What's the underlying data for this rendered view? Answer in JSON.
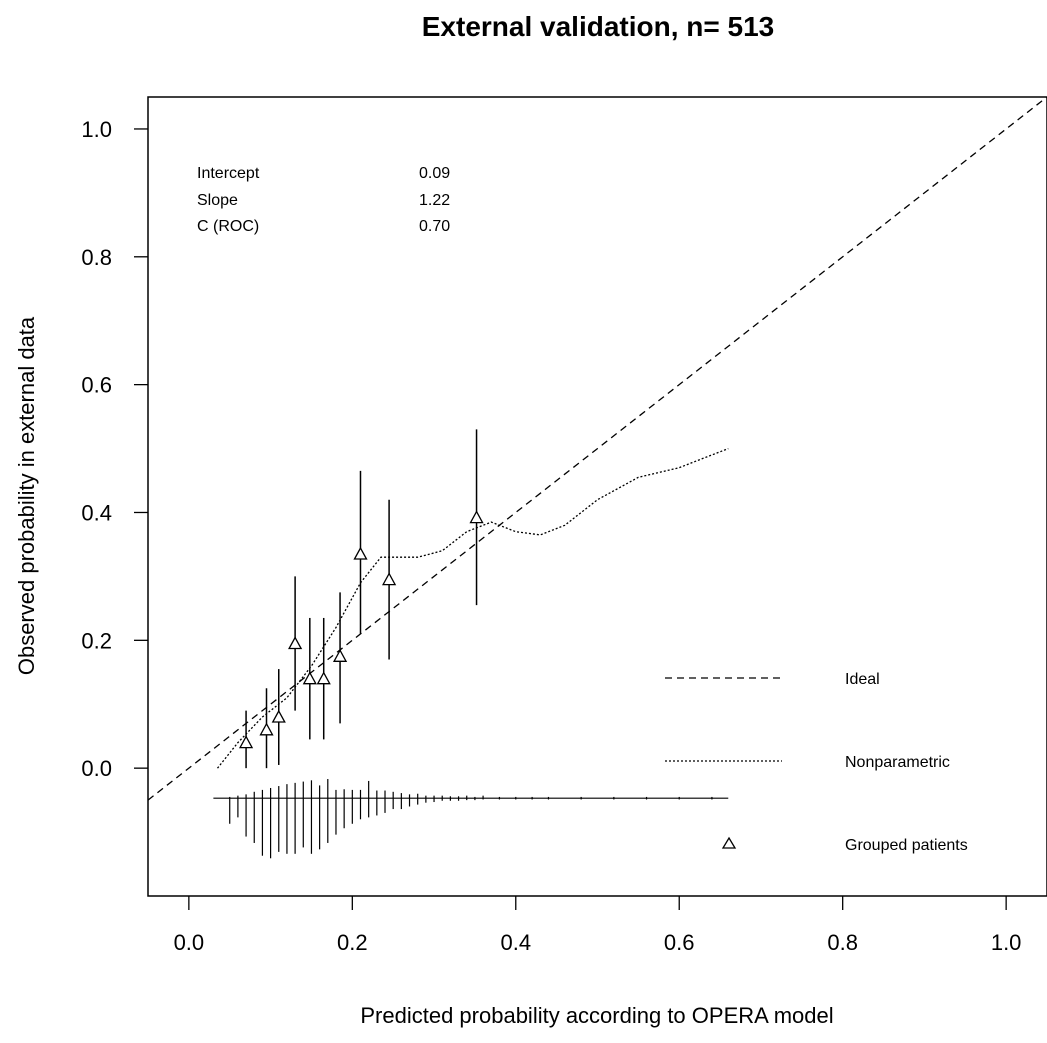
{
  "chart_data": {
    "type": "scatter",
    "title": "External validation, n= 513",
    "xlabel": "Predicted probability according to OPERA model",
    "ylabel": "Observed probability in external data",
    "xlim": [
      -0.05,
      1.05
    ],
    "ylim": [
      -0.2,
      1.05
    ],
    "xticks": [
      "0.0",
      "0.2",
      "0.4",
      "0.6",
      "0.8",
      "1.0"
    ],
    "yticks": [
      "0.0",
      "0.2",
      "0.4",
      "0.6",
      "0.8",
      "1.0"
    ],
    "stats": [
      {
        "label": "Intercept",
        "value": "0.09"
      },
      {
        "label": "Slope",
        "value": "1.22"
      },
      {
        "label": "C (ROC)",
        "value": "0.70"
      }
    ],
    "legend": {
      "position": "bottom-right",
      "entries": [
        {
          "label": "Ideal",
          "style": "dashed"
        },
        {
          "label": "Nonparametric",
          "style": "dotted"
        },
        {
          "label": "Grouped patients",
          "style": "triangle"
        }
      ]
    },
    "series": [
      {
        "name": "Ideal",
        "kind": "line",
        "x": [
          -0.05,
          1.05
        ],
        "y": [
          -0.05,
          1.05
        ]
      },
      {
        "name": "Nonparametric",
        "kind": "line",
        "x": [
          0.035,
          0.06,
          0.09,
          0.12,
          0.15,
          0.18,
          0.21,
          0.235,
          0.25,
          0.28,
          0.31,
          0.34,
          0.37,
          0.4,
          0.43,
          0.46,
          0.5,
          0.55,
          0.6,
          0.63,
          0.66
        ],
        "y": [
          0.0,
          0.04,
          0.08,
          0.11,
          0.16,
          0.22,
          0.29,
          0.33,
          0.33,
          0.33,
          0.34,
          0.37,
          0.385,
          0.37,
          0.365,
          0.38,
          0.42,
          0.455,
          0.47,
          0.485,
          0.5
        ]
      },
      {
        "name": "Grouped patients",
        "kind": "points",
        "x": [
          0.07,
          0.095,
          0.11,
          0.13,
          0.148,
          0.165,
          0.185,
          0.21,
          0.245,
          0.352
        ],
        "y": [
          0.04,
          0.06,
          0.08,
          0.195,
          0.14,
          0.14,
          0.175,
          0.335,
          0.295,
          0.392
        ],
        "lower": [
          0.0,
          0.0,
          0.005,
          0.09,
          0.045,
          0.045,
          0.07,
          0.21,
          0.17,
          0.255
        ],
        "upper": [
          0.09,
          0.125,
          0.155,
          0.3,
          0.235,
          0.235,
          0.275,
          0.465,
          0.42,
          0.53
        ]
      }
    ],
    "histogram": {
      "baseline_y": -0.047,
      "x": [
        0.04,
        0.05,
        0.06,
        0.07,
        0.08,
        0.09,
        0.1,
        0.11,
        0.12,
        0.13,
        0.14,
        0.15,
        0.16,
        0.17,
        0.18,
        0.19,
        0.2,
        0.21,
        0.22,
        0.23,
        0.24,
        0.25,
        0.26,
        0.27,
        0.28,
        0.29,
        0.3,
        0.31,
        0.32,
        0.33,
        0.34,
        0.35,
        0.36,
        0.38,
        0.4,
        0.42,
        0.44,
        0.48,
        0.52,
        0.56,
        0.6,
        0.64
      ],
      "up": [
        0,
        0.002,
        0.004,
        0.006,
        0.01,
        0.013,
        0.016,
        0.019,
        0.022,
        0.024,
        0.026,
        0.028,
        0.02,
        0.03,
        0.013,
        0.014,
        0.013,
        0.013,
        0.027,
        0.012,
        0.012,
        0.01,
        0.008,
        0.006,
        0.007,
        0.004,
        0.004,
        0.004,
        0.003,
        0.003,
        0.004,
        0.002,
        0.004,
        0.002,
        0.002,
        0.002,
        0.002,
        0.002,
        0.002,
        0.002,
        0.002,
        0.002
      ],
      "down": [
        0,
        0.04,
        0.03,
        0.06,
        0.07,
        0.09,
        0.094,
        0.084,
        0.087,
        0.087,
        0.077,
        0.087,
        0.08,
        0.07,
        0.057,
        0.047,
        0.04,
        0.033,
        0.03,
        0.027,
        0.023,
        0.017,
        0.017,
        0.013,
        0.01,
        0.007,
        0.006,
        0.004,
        0.004,
        0.004,
        0.003,
        0.003,
        0.002,
        0.002,
        0.002,
        0.002,
        0.002,
        0.002,
        0.002,
        0.002,
        0.002,
        0.002
      ]
    }
  }
}
